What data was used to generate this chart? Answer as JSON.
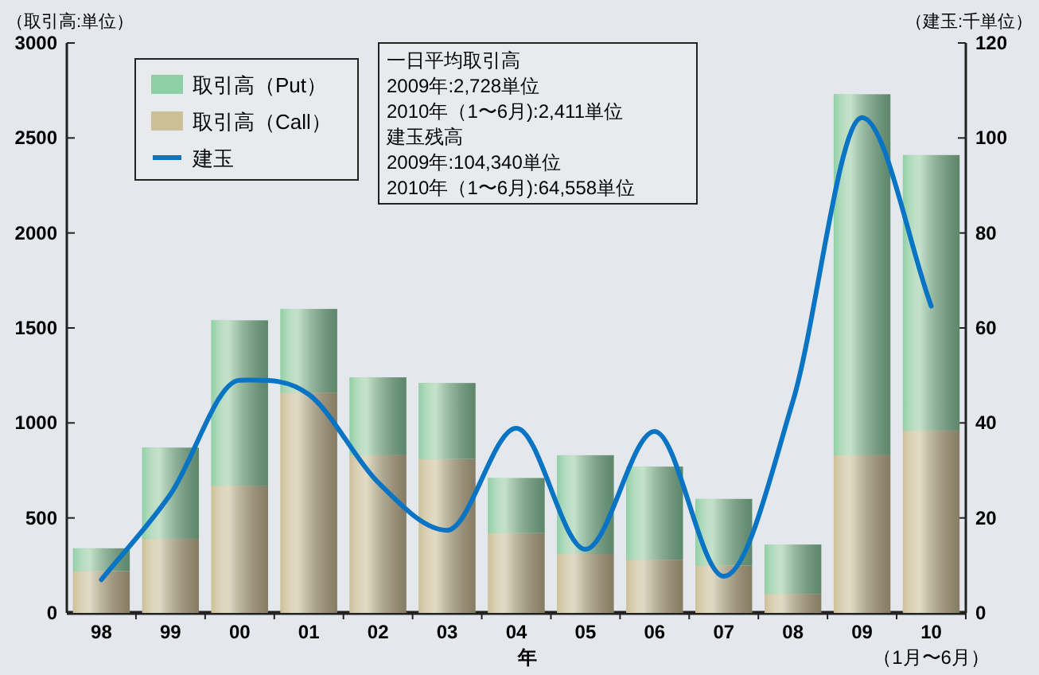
{
  "chart_data": {
    "type": "bar",
    "stacked": true,
    "ylabel": "（取引高:単位）",
    "y2label": "（建玉:千単位）",
    "xlabel": "年",
    "categories": [
      "98",
      "99",
      "00",
      "01",
      "02",
      "03",
      "04",
      "05",
      "06",
      "07",
      "08",
      "09",
      "10"
    ],
    "series": [
      {
        "name": "取引高（Call）",
        "color": "#cdbf98",
        "values": [
          220,
          390,
          670,
          1160,
          830,
          810,
          420,
          310,
          280,
          250,
          100,
          830,
          960
        ]
      },
      {
        "name": "取引高（Put）",
        "color": "#8fcfa5",
        "values": [
          120,
          480,
          870,
          440,
          410,
          400,
          290,
          520,
          490,
          350,
          260,
          1900,
          1450
        ]
      },
      {
        "name": "建玉",
        "type": "line",
        "axis": "y2",
        "color": "#0a74c4",
        "values": [
          7,
          25,
          49,
          46,
          27.5,
          17.4,
          38.9,
          13.4,
          38.2,
          7.7,
          44.6,
          104.3,
          64.6
        ]
      }
    ],
    "ylim": [
      0,
      3000
    ],
    "yticks": [
      0,
      500,
      1000,
      1500,
      2000,
      2500,
      3000
    ],
    "y2lim": [
      0,
      120
    ],
    "y2ticks": [
      0,
      20,
      40,
      60,
      80,
      100,
      120
    ],
    "legend": "top left",
    "grid": false,
    "marker": "none",
    "line_style": "solid",
    "annotations": [
      "（1月〜6月）",
      "一日平均取引高",
      "2009年:2,728単位",
      "2010年（1〜6月):2,411単位",
      "建玉残高",
      "2009年:104,340単位",
      "2010年（1〜6月):64,558単位"
    ]
  }
}
